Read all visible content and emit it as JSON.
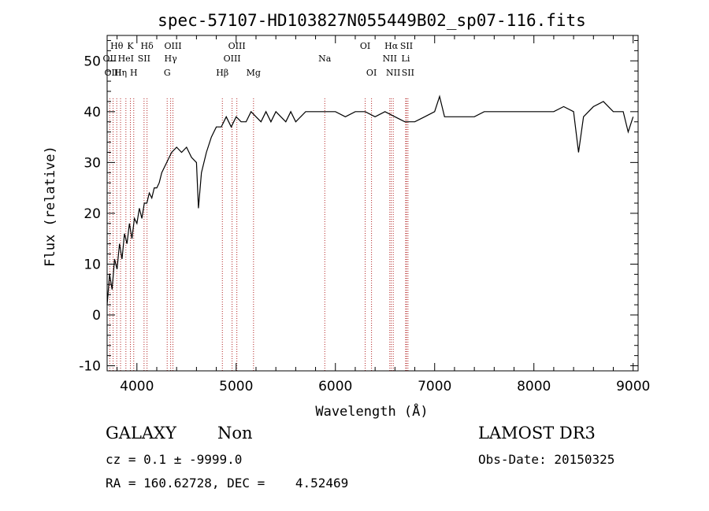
{
  "chart_data": {
    "type": "line",
    "title": "spec-57107-HD103827N055449B02_sp07-116.fits",
    "xlabel": "Wavelength (Å)",
    "ylabel": "Flux (relative)",
    "xlim": [
      3700,
      9050
    ],
    "ylim": [
      -11,
      55
    ],
    "xticks": [
      4000,
      5000,
      6000,
      7000,
      8000,
      9000
    ],
    "yticks": [
      -10,
      0,
      10,
      20,
      30,
      40,
      50
    ],
    "grid": false,
    "series": [
      {
        "color": "#000000",
        "x": [
          3700,
          3725,
          3750,
          3775,
          3800,
          3825,
          3850,
          3875,
          3900,
          3925,
          3950,
          3975,
          4000,
          4025,
          4050,
          4075,
          4100,
          4125,
          4150,
          4175,
          4200,
          4225,
          4250,
          4300,
          4350,
          4400,
          4450,
          4500,
          4550,
          4600,
          4620,
          4650,
          4700,
          4750,
          4800,
          4850,
          4900,
          4950,
          5000,
          5050,
          5100,
          5150,
          5200,
          5250,
          5300,
          5350,
          5400,
          5450,
          5500,
          5550,
          5600,
          5700,
          5800,
          5900,
          6000,
          6100,
          6200,
          6300,
          6400,
          6500,
          6600,
          6700,
          6800,
          6900,
          7000,
          7050,
          7100,
          7200,
          7300,
          7400,
          7500,
          7600,
          7700,
          7800,
          7900,
          8000,
          8100,
          8200,
          8300,
          8400,
          8450,
          8500,
          8600,
          8700,
          8800,
          8900,
          8950,
          9000
        ],
        "y": [
          2,
          8,
          5,
          11,
          9,
          14,
          11,
          16,
          14,
          18,
          15,
          19,
          18,
          21,
          19,
          22,
          22,
          24,
          23,
          25,
          25,
          26,
          28,
          30,
          32,
          33,
          32,
          33,
          31,
          30,
          21,
          28,
          32,
          35,
          37,
          37,
          39,
          37,
          39,
          38,
          38,
          40,
          39,
          38,
          40,
          38,
          40,
          39,
          38,
          40,
          38,
          40,
          40,
          40,
          40,
          39,
          40,
          40,
          39,
          40,
          39,
          38,
          38,
          39,
          40,
          43,
          39,
          39,
          39,
          39,
          40,
          40,
          40,
          40,
          40,
          40,
          40,
          40,
          41,
          40,
          32,
          39,
          41,
          42,
          40,
          40,
          36,
          39
        ]
      }
    ],
    "lines": [
      {
        "label": "OII",
        "x": 3727,
        "row": 2
      },
      {
        "label": "OIII",
        "x": 3760,
        "row": 3
      },
      {
        "label": "Hθ",
        "x": 3797,
        "row": 1
      },
      {
        "label": "Hη",
        "x": 3835,
        "row": 3
      },
      {
        "label": "HeI",
        "x": 3889,
        "row": 2
      },
      {
        "label": "K",
        "x": 3934,
        "row": 1
      },
      {
        "label": "H",
        "x": 3968,
        "row": 3
      },
      {
        "label": "SII",
        "x": 4072,
        "row": 2
      },
      {
        "label": "Hδ",
        "x": 4102,
        "row": 1
      },
      {
        "label": "OIII",
        "x": 4363,
        "row": 1
      },
      {
        "label": "Hγ",
        "x": 4340,
        "row": 2
      },
      {
        "label": "G",
        "x": 4305,
        "row": 3
      },
      {
        "label": "Hβ",
        "x": 4861,
        "row": 3
      },
      {
        "label": "OIII",
        "x": 4959,
        "row": 2
      },
      {
        "label": "OIII",
        "x": 5007,
        "row": 1
      },
      {
        "label": "Mg",
        "x": 5175,
        "row": 3
      },
      {
        "label": "Na",
        "x": 5893,
        "row": 2
      },
      {
        "label": "OI",
        "x": 6300,
        "row": 1
      },
      {
        "label": "OI",
        "x": 6364,
        "row": 3
      },
      {
        "label": "NII",
        "x": 6548,
        "row": 2
      },
      {
        "label": "Hα",
        "x": 6563,
        "row": 1
      },
      {
        "label": "NII",
        "x": 6583,
        "row": 3
      },
      {
        "label": "SII",
        "x": 6716,
        "row": 1
      },
      {
        "label": "Li",
        "x": 6708,
        "row": 2
      },
      {
        "label": "SII",
        "x": 6731,
        "row": 3
      }
    ]
  },
  "info": {
    "class": "GALAXY",
    "subclass": "Non",
    "survey": "LAMOST DR3",
    "cz": "cz = 0.1 ± -9999.0",
    "obs_date": "Obs-Date: 20150325",
    "radec": "RA = 160.62728, DEC =    4.52469"
  }
}
